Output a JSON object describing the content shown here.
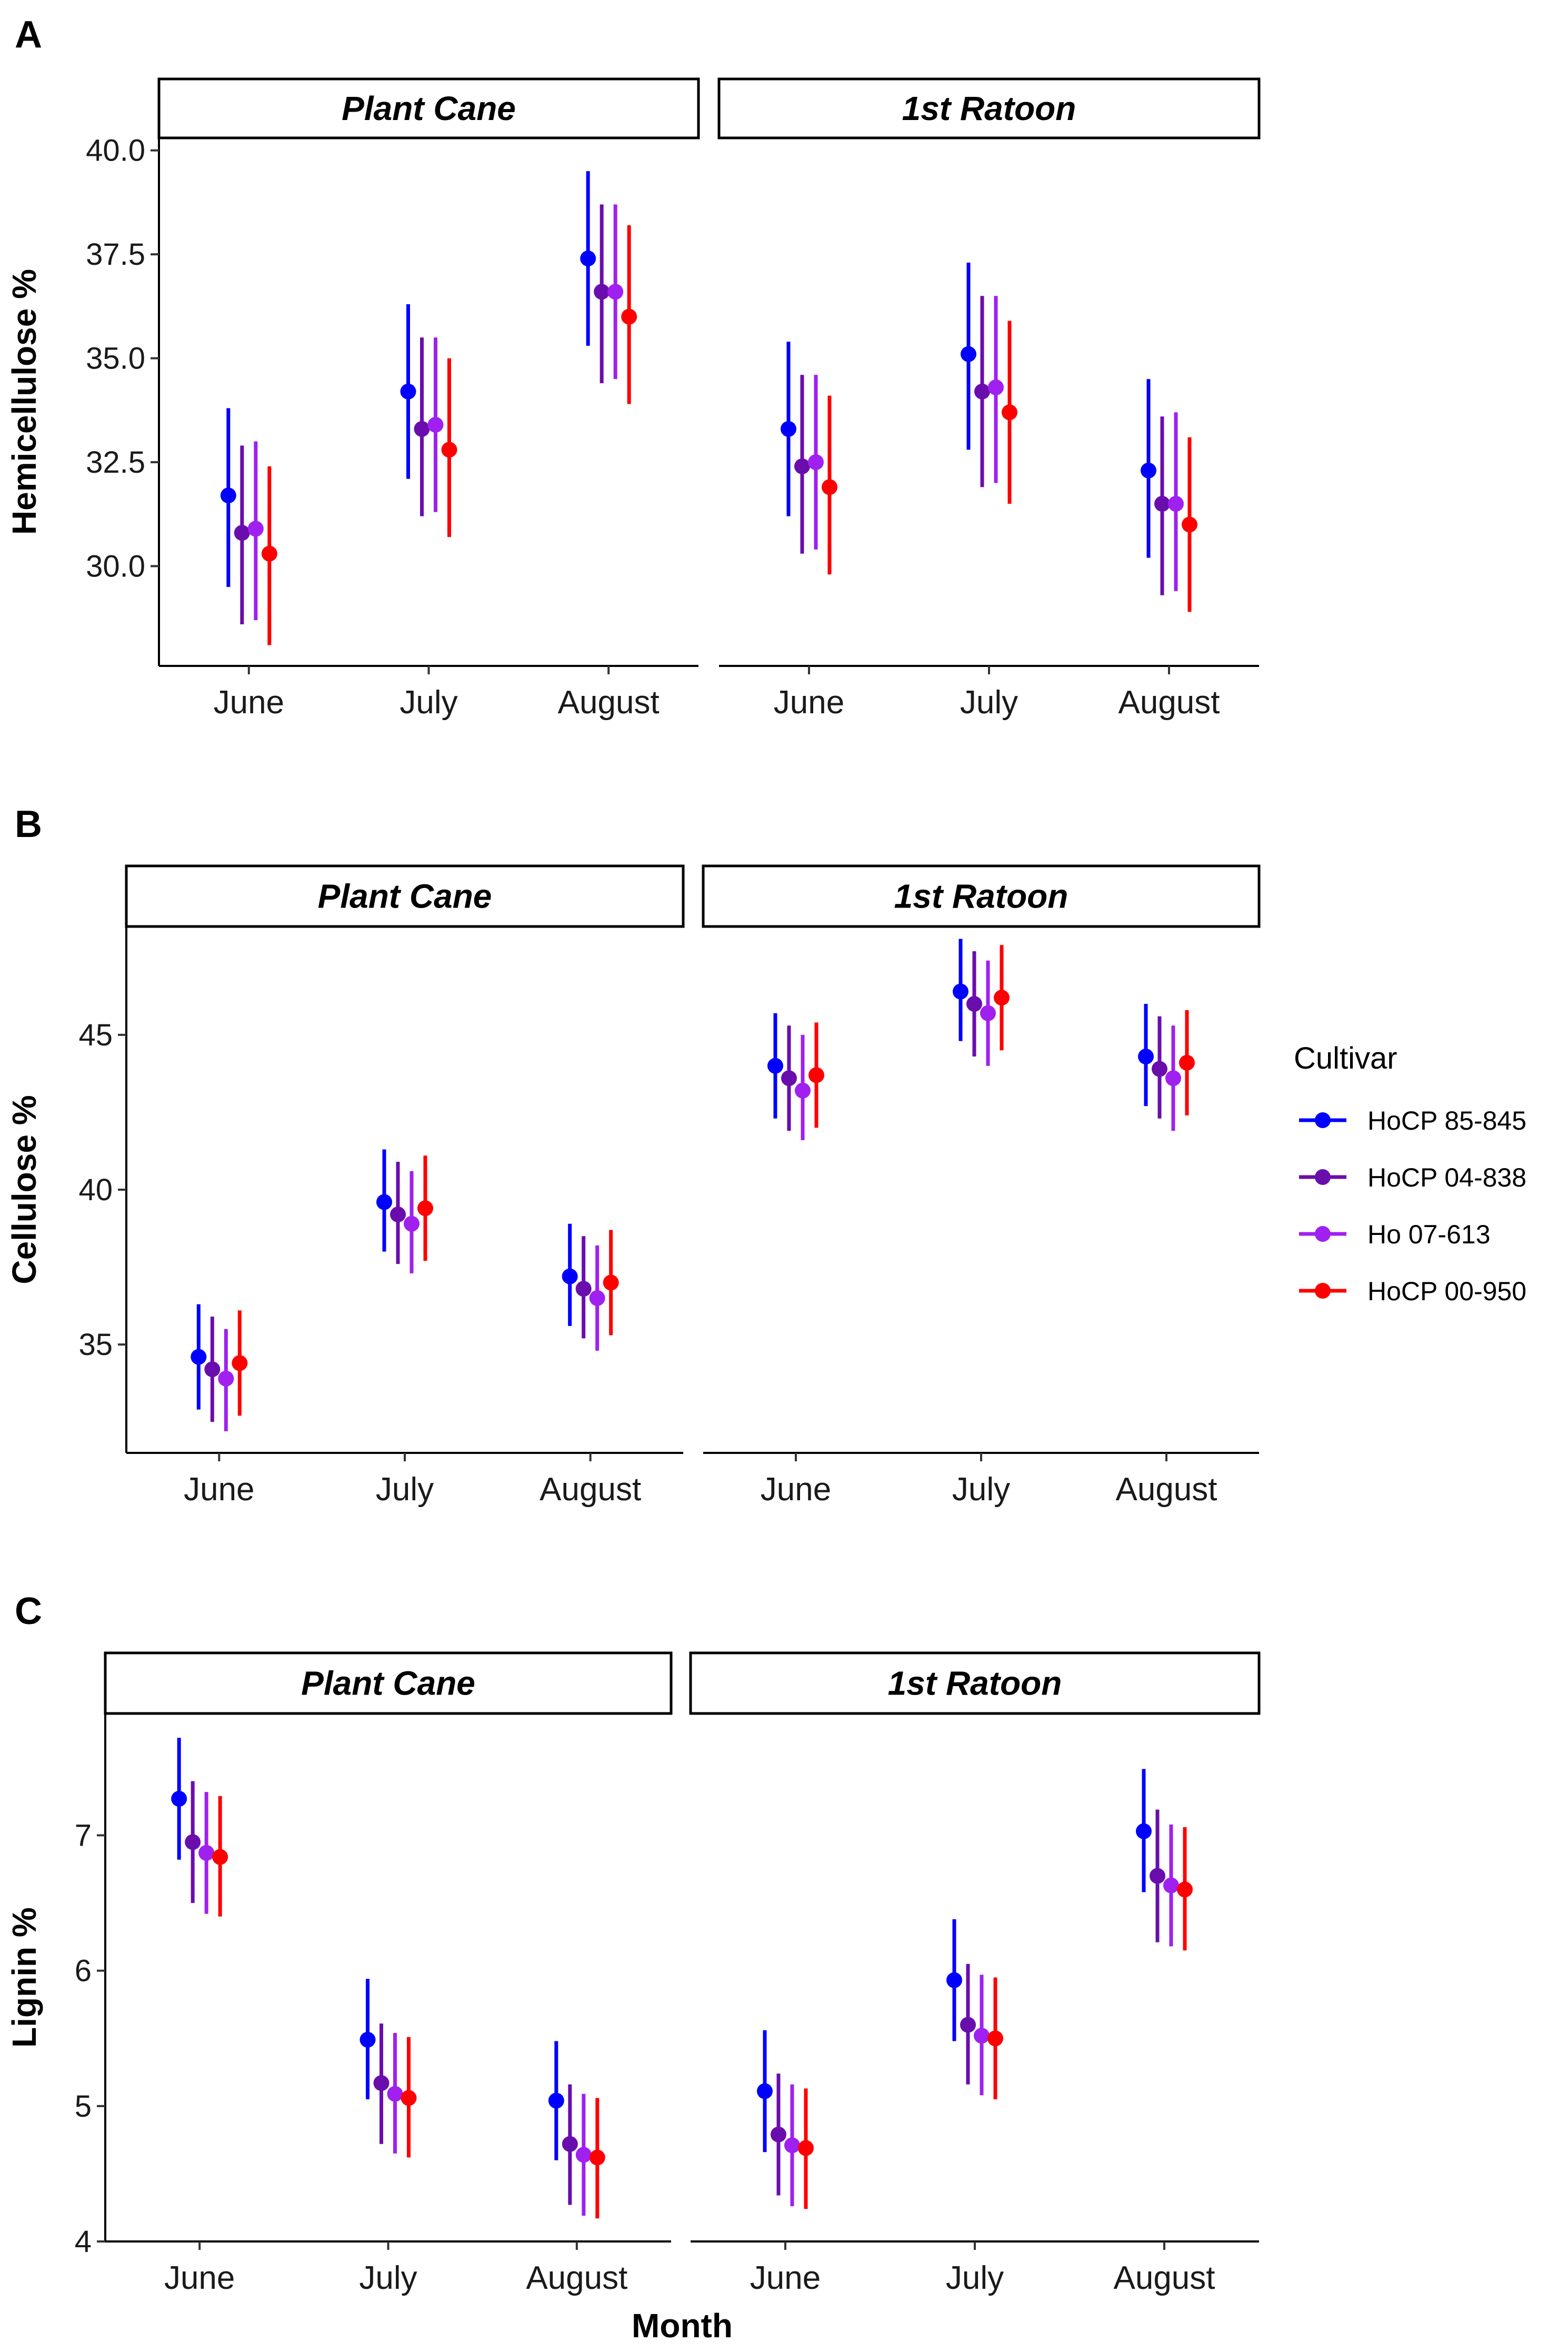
{
  "chart_data": [
    {
      "type": "pointrange",
      "panel_label": "A",
      "ylabel": "Hemicellulose %",
      "ylim": [
        27.6,
        40.3
      ],
      "yticks": [
        30.0,
        32.5,
        35.0,
        37.5,
        40.0
      ],
      "ytick_labels": [
        "30.0",
        "32.5",
        "35.0",
        "37.5",
        "40.0"
      ],
      "facets": [
        {
          "name": "Plant Cane",
          "categories": [
            "June",
            "July",
            "August"
          ],
          "series": [
            {
              "name": "HoCP 85-845",
              "values": [
                31.7,
                34.2,
                37.4
              ],
              "lower": [
                29.5,
                32.1,
                35.3
              ],
              "upper": [
                33.8,
                36.3,
                39.5
              ]
            },
            {
              "name": "HoCP 04-838",
              "values": [
                30.8,
                33.3,
                36.6
              ],
              "lower": [
                28.6,
                31.2,
                34.4
              ],
              "upper": [
                32.9,
                35.5,
                38.7
              ]
            },
            {
              "name": "Ho 07-613",
              "values": [
                30.9,
                33.4,
                36.6
              ],
              "lower": [
                28.7,
                31.3,
                34.5
              ],
              "upper": [
                33.0,
                35.5,
                38.7
              ]
            },
            {
              "name": "HoCP 00-950",
              "values": [
                30.3,
                32.8,
                36.0
              ],
              "lower": [
                28.1,
                30.7,
                33.9
              ],
              "upper": [
                32.4,
                35.0,
                38.2
              ]
            }
          ]
        },
        {
          "name": "1st Ratoon",
          "categories": [
            "June",
            "July",
            "August"
          ],
          "series": [
            {
              "name": "HoCP 85-845",
              "values": [
                33.3,
                35.1,
                32.3
              ],
              "lower": [
                31.2,
                32.8,
                30.2
              ],
              "upper": [
                35.4,
                37.3,
                34.5
              ]
            },
            {
              "name": "HoCP 04-838",
              "values": [
                32.4,
                34.2,
                31.5
              ],
              "lower": [
                30.3,
                31.9,
                29.3
              ],
              "upper": [
                34.6,
                36.5,
                33.6
              ]
            },
            {
              "name": "Ho 07-613",
              "values": [
                32.5,
                34.3,
                31.5
              ],
              "lower": [
                30.4,
                32.0,
                29.4
              ],
              "upper": [
                34.6,
                36.5,
                33.7
              ]
            },
            {
              "name": "HoCP 00-950",
              "values": [
                31.9,
                33.7,
                31.0
              ],
              "lower": [
                29.8,
                31.5,
                28.9
              ],
              "upper": [
                34.1,
                35.9,
                33.1
              ]
            }
          ]
        }
      ]
    },
    {
      "type": "pointrange",
      "panel_label": "B",
      "ylabel": "Cellulose %",
      "ylim": [
        31.5,
        48.5
      ],
      "yticks": [
        35,
        40,
        45
      ],
      "ytick_labels": [
        "35",
        "40",
        "45"
      ],
      "facets": [
        {
          "name": "Plant Cane",
          "categories": [
            "June",
            "July",
            "August"
          ],
          "series": [
            {
              "name": "HoCP 85-845",
              "values": [
                34.6,
                39.6,
                37.2
              ],
              "lower": [
                32.9,
                38.0,
                35.6
              ],
              "upper": [
                36.3,
                41.3,
                38.9
              ]
            },
            {
              "name": "HoCP 04-838",
              "values": [
                34.2,
                39.2,
                36.8
              ],
              "lower": [
                32.5,
                37.6,
                35.2
              ],
              "upper": [
                35.9,
                40.9,
                38.5
              ]
            },
            {
              "name": "Ho 07-613",
              "values": [
                33.9,
                38.9,
                36.5
              ],
              "lower": [
                32.2,
                37.3,
                34.8
              ],
              "upper": [
                35.5,
                40.6,
                38.2
              ]
            },
            {
              "name": "HoCP 00-950",
              "values": [
                34.4,
                39.4,
                37.0
              ],
              "lower": [
                32.7,
                37.7,
                35.3
              ],
              "upper": [
                36.1,
                41.1,
                38.7
              ]
            }
          ]
        },
        {
          "name": "1st Ratoon",
          "categories": [
            "June",
            "July",
            "August"
          ],
          "series": [
            {
              "name": "HoCP 85-845",
              "values": [
                44.0,
                46.4,
                44.3
              ],
              "lower": [
                42.3,
                44.8,
                42.7
              ],
              "upper": [
                45.7,
                48.1,
                46.0
              ]
            },
            {
              "name": "HoCP 04-838",
              "values": [
                43.6,
                46.0,
                43.9
              ],
              "lower": [
                41.9,
                44.3,
                42.3
              ],
              "upper": [
                45.3,
                47.7,
                45.6
              ]
            },
            {
              "name": "Ho 07-613",
              "values": [
                43.2,
                45.7,
                43.6
              ],
              "lower": [
                41.6,
                44.0,
                41.9
              ],
              "upper": [
                45.0,
                47.4,
                45.3
              ]
            },
            {
              "name": "HoCP 00-950",
              "values": [
                43.7,
                46.2,
                44.1
              ],
              "lower": [
                42.0,
                44.5,
                42.4
              ],
              "upper": [
                45.4,
                47.9,
                45.8
              ]
            }
          ]
        }
      ]
    },
    {
      "type": "pointrange",
      "panel_label": "C",
      "ylabel": "Lignin %",
      "xlabel": "Month",
      "ylim": [
        4.0,
        7.9
      ],
      "yticks": [
        4,
        5,
        6,
        7
      ],
      "ytick_labels": [
        "4",
        "5",
        "6",
        "7"
      ],
      "facets": [
        {
          "name": "Plant Cane",
          "categories": [
            "June",
            "July",
            "August"
          ],
          "series": [
            {
              "name": "HoCP 85-845",
              "values": [
                7.27,
                5.49,
                5.04
              ],
              "lower": [
                6.82,
                5.05,
                4.6
              ],
              "upper": [
                7.72,
                5.94,
                5.48
              ]
            },
            {
              "name": "HoCP 04-838",
              "values": [
                6.95,
                5.17,
                4.72
              ],
              "lower": [
                6.5,
                4.72,
                4.27
              ],
              "upper": [
                7.4,
                5.61,
                5.16
              ]
            },
            {
              "name": "Ho 07-613",
              "values": [
                6.87,
                5.09,
                4.64
              ],
              "lower": [
                6.42,
                4.65,
                4.19
              ],
              "upper": [
                7.32,
                5.54,
                5.09
              ]
            },
            {
              "name": "HoCP 00-950",
              "values": [
                6.84,
                5.06,
                4.62
              ],
              "lower": [
                6.4,
                4.62,
                4.17
              ],
              "upper": [
                7.29,
                5.51,
                5.06
              ]
            }
          ]
        },
        {
          "name": "1st Ratoon",
          "categories": [
            "June",
            "July",
            "August"
          ],
          "series": [
            {
              "name": "HoCP 85-845",
              "values": [
                5.11,
                5.93,
                7.03
              ],
              "lower": [
                4.66,
                5.48,
                6.58
              ],
              "upper": [
                5.56,
                6.38,
                7.49
              ]
            },
            {
              "name": "HoCP 04-838",
              "values": [
                4.79,
                5.6,
                6.7
              ],
              "lower": [
                4.34,
                5.16,
                6.21
              ],
              "upper": [
                5.24,
                6.05,
                7.19
              ]
            },
            {
              "name": "Ho 07-613",
              "values": [
                4.71,
                5.52,
                6.63
              ],
              "lower": [
                4.26,
                5.08,
                6.18
              ],
              "upper": [
                5.16,
                5.97,
                7.08
              ]
            },
            {
              "name": "HoCP 00-950",
              "values": [
                4.69,
                5.5,
                6.6
              ],
              "lower": [
                4.24,
                5.05,
                6.15
              ],
              "upper": [
                5.13,
                5.95,
                7.06
              ]
            }
          ]
        }
      ]
    }
  ],
  "legend": {
    "title": "Cultivar",
    "position": "right",
    "items": [
      {
        "name": "HoCP 85-845",
        "color": "#0000FF"
      },
      {
        "name": "HoCP 04-838",
        "color": "#6A0DAD"
      },
      {
        "name": "Ho 07-613",
        "color": "#A020F0"
      },
      {
        "name": "HoCP 00-950",
        "color": "#FF0000"
      }
    ]
  }
}
